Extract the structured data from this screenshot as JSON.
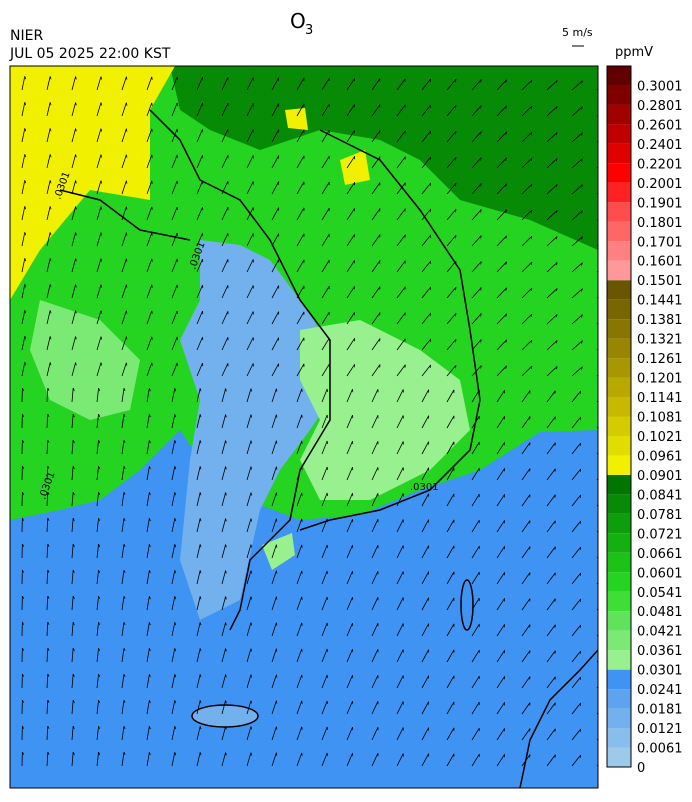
{
  "header": {
    "title": "O",
    "title_sub": "3",
    "agency": "NIER",
    "datetime": "JUL 05 2025 22:00 KST",
    "wind_scale": "5 m/s",
    "unit": "ppmV"
  },
  "contour_labels": [
    ".0301",
    ".0301",
    ".0301",
    ".0301"
  ],
  "colorbar": {
    "ticks": [
      0,
      0.0061,
      0.0121,
      0.0181,
      0.0241,
      0.0301,
      0.0361,
      0.0421,
      0.0481,
      0.0541,
      0.0601,
      0.0661,
      0.0721,
      0.0781,
      0.0841,
      0.0901,
      0.0961,
      0.1021,
      0.1081,
      0.1141,
      0.1201,
      0.1261,
      0.1321,
      0.1381,
      0.1441,
      0.1501,
      0.1601,
      0.1701,
      0.1801,
      0.1901,
      0.2001,
      0.2201,
      0.2401,
      0.2601,
      0.2801,
      0.3001
    ],
    "colors": [
      "#9ecae9",
      "#88bdec",
      "#73b1ee",
      "#5ea3f0",
      "#3f93f2",
      "#98f08f",
      "#7aea74",
      "#5fe35a",
      "#3ede37",
      "#24d420",
      "#1bc317",
      "#14b012",
      "#0d9e0c",
      "#078b07",
      "#007500",
      "#f0f000",
      "#e2dd00",
      "#d4cb00",
      "#c6b900",
      "#b8a800",
      "#a89700",
      "#988600",
      "#887600",
      "#786600",
      "#685700",
      "#ff9999",
      "#ff8080",
      "#ff6666",
      "#ff4d4d",
      "#ff2222",
      "#ff0000",
      "#e00000",
      "#c00000",
      "#a00000",
      "#800000",
      "#600000"
    ]
  }
}
